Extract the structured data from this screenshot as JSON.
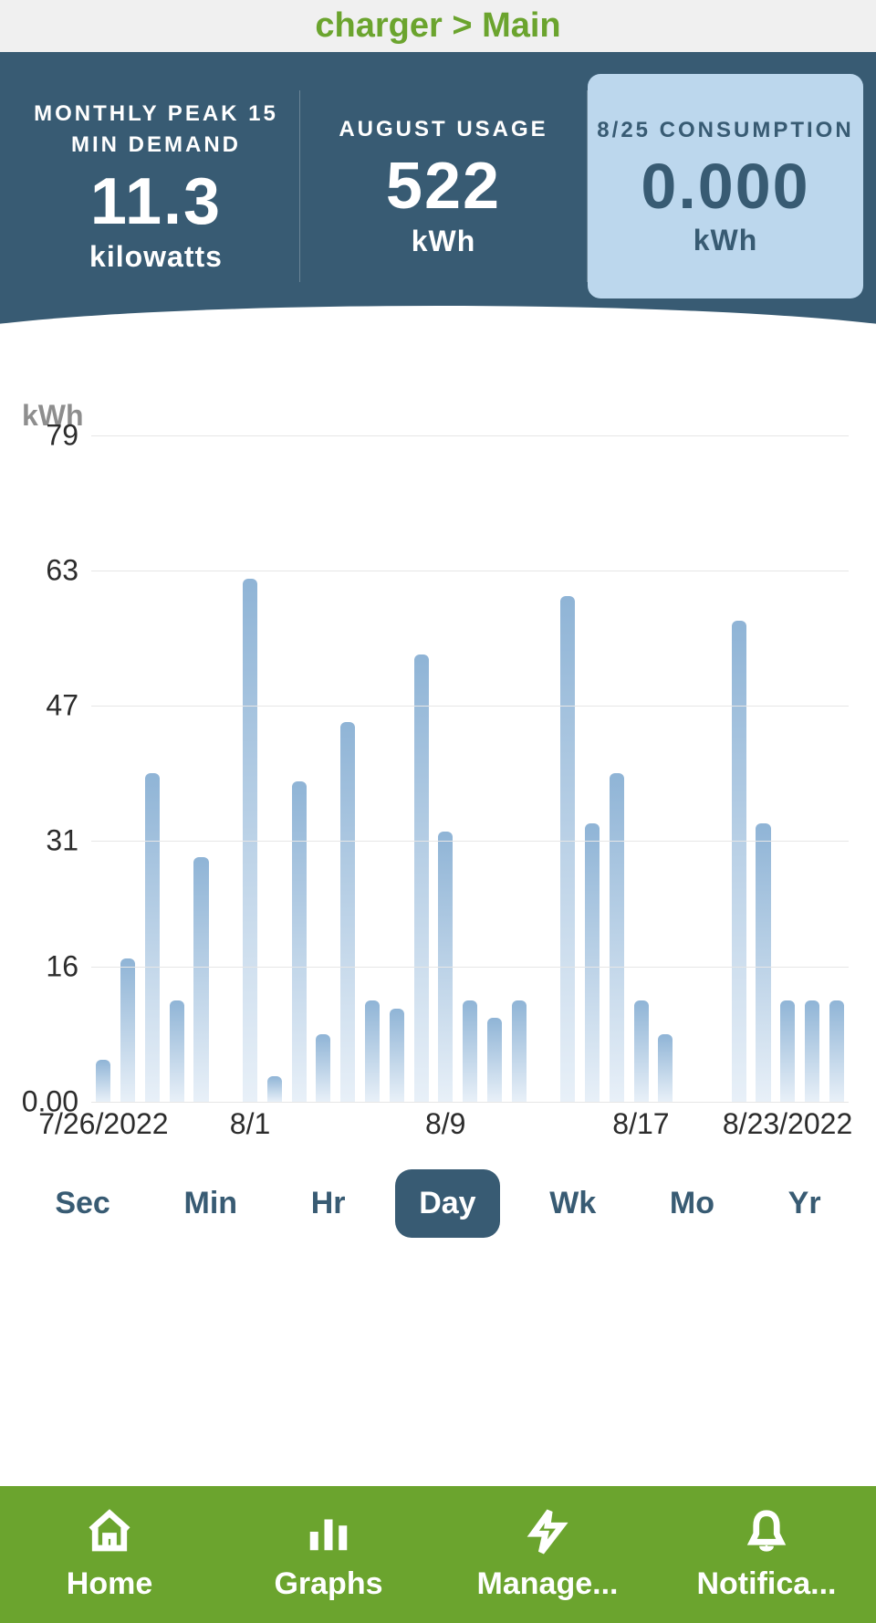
{
  "header": {
    "breadcrumb": "charger > Main"
  },
  "metrics": [
    {
      "label": "MONTHLY PEAK 15 MIN DEMAND",
      "value": "11.3",
      "unit": "kilowatts",
      "highlighted": false
    },
    {
      "label": "AUGUST USAGE",
      "value": "522",
      "unit": "kWh",
      "highlighted": false
    },
    {
      "label": "8/25 CONSUMPTION",
      "value": "0.000",
      "unit": "kWh",
      "highlighted": true
    }
  ],
  "chart": {
    "type": "bar",
    "ylabel": "kWh",
    "ylim": [
      0,
      79
    ],
    "yticks": [
      {
        "value": 0,
        "label": "0.00"
      },
      {
        "value": 16,
        "label": "16"
      },
      {
        "value": 31,
        "label": "31"
      },
      {
        "value": 47,
        "label": "47"
      },
      {
        "value": 63,
        "label": "63"
      },
      {
        "value": 79,
        "label": "79"
      }
    ],
    "xticks": [
      {
        "index": 0,
        "label": "7/26/2022"
      },
      {
        "index": 6,
        "label": "8/1"
      },
      {
        "index": 14,
        "label": "8/9"
      },
      {
        "index": 22,
        "label": "8/17"
      },
      {
        "index": 28,
        "label": "8/23/2022"
      }
    ],
    "values": [
      5,
      17,
      39,
      12,
      29,
      0,
      62,
      3,
      38,
      8,
      45,
      12,
      11,
      53,
      32,
      12,
      10,
      12,
      0,
      60,
      33,
      39,
      12,
      8,
      0,
      0,
      57,
      33,
      12,
      12,
      12
    ],
    "bar_color_top": "#8fb4d6",
    "bar_color_bottom": "#e8f0f8",
    "grid_color": "#e6e6e6",
    "background_color": "#ffffff",
    "ylabel_color": "#8e8e8e",
    "tick_color": "#2c2c2c",
    "tick_fontsize": 32
  },
  "range_tabs": {
    "options": [
      "Sec",
      "Min",
      "Hr",
      "Day",
      "Wk",
      "Mo",
      "Yr"
    ],
    "active": "Day",
    "active_bg": "#385b73",
    "active_fg": "#ffffff",
    "inactive_fg": "#385b73"
  },
  "bottom_nav": {
    "items": [
      {
        "icon": "home-icon",
        "label": "Home"
      },
      {
        "icon": "graphs-icon",
        "label": "Graphs"
      },
      {
        "icon": "manage-icon",
        "label": "Manage..."
      },
      {
        "icon": "notifications-icon",
        "label": "Notifica..."
      }
    ],
    "bg": "#6ba42e",
    "fg": "#ffffff"
  },
  "colors": {
    "panel_bg": "#385b73",
    "highlight_bg": "#bcd7ed",
    "accent_green": "#6ba42e"
  }
}
